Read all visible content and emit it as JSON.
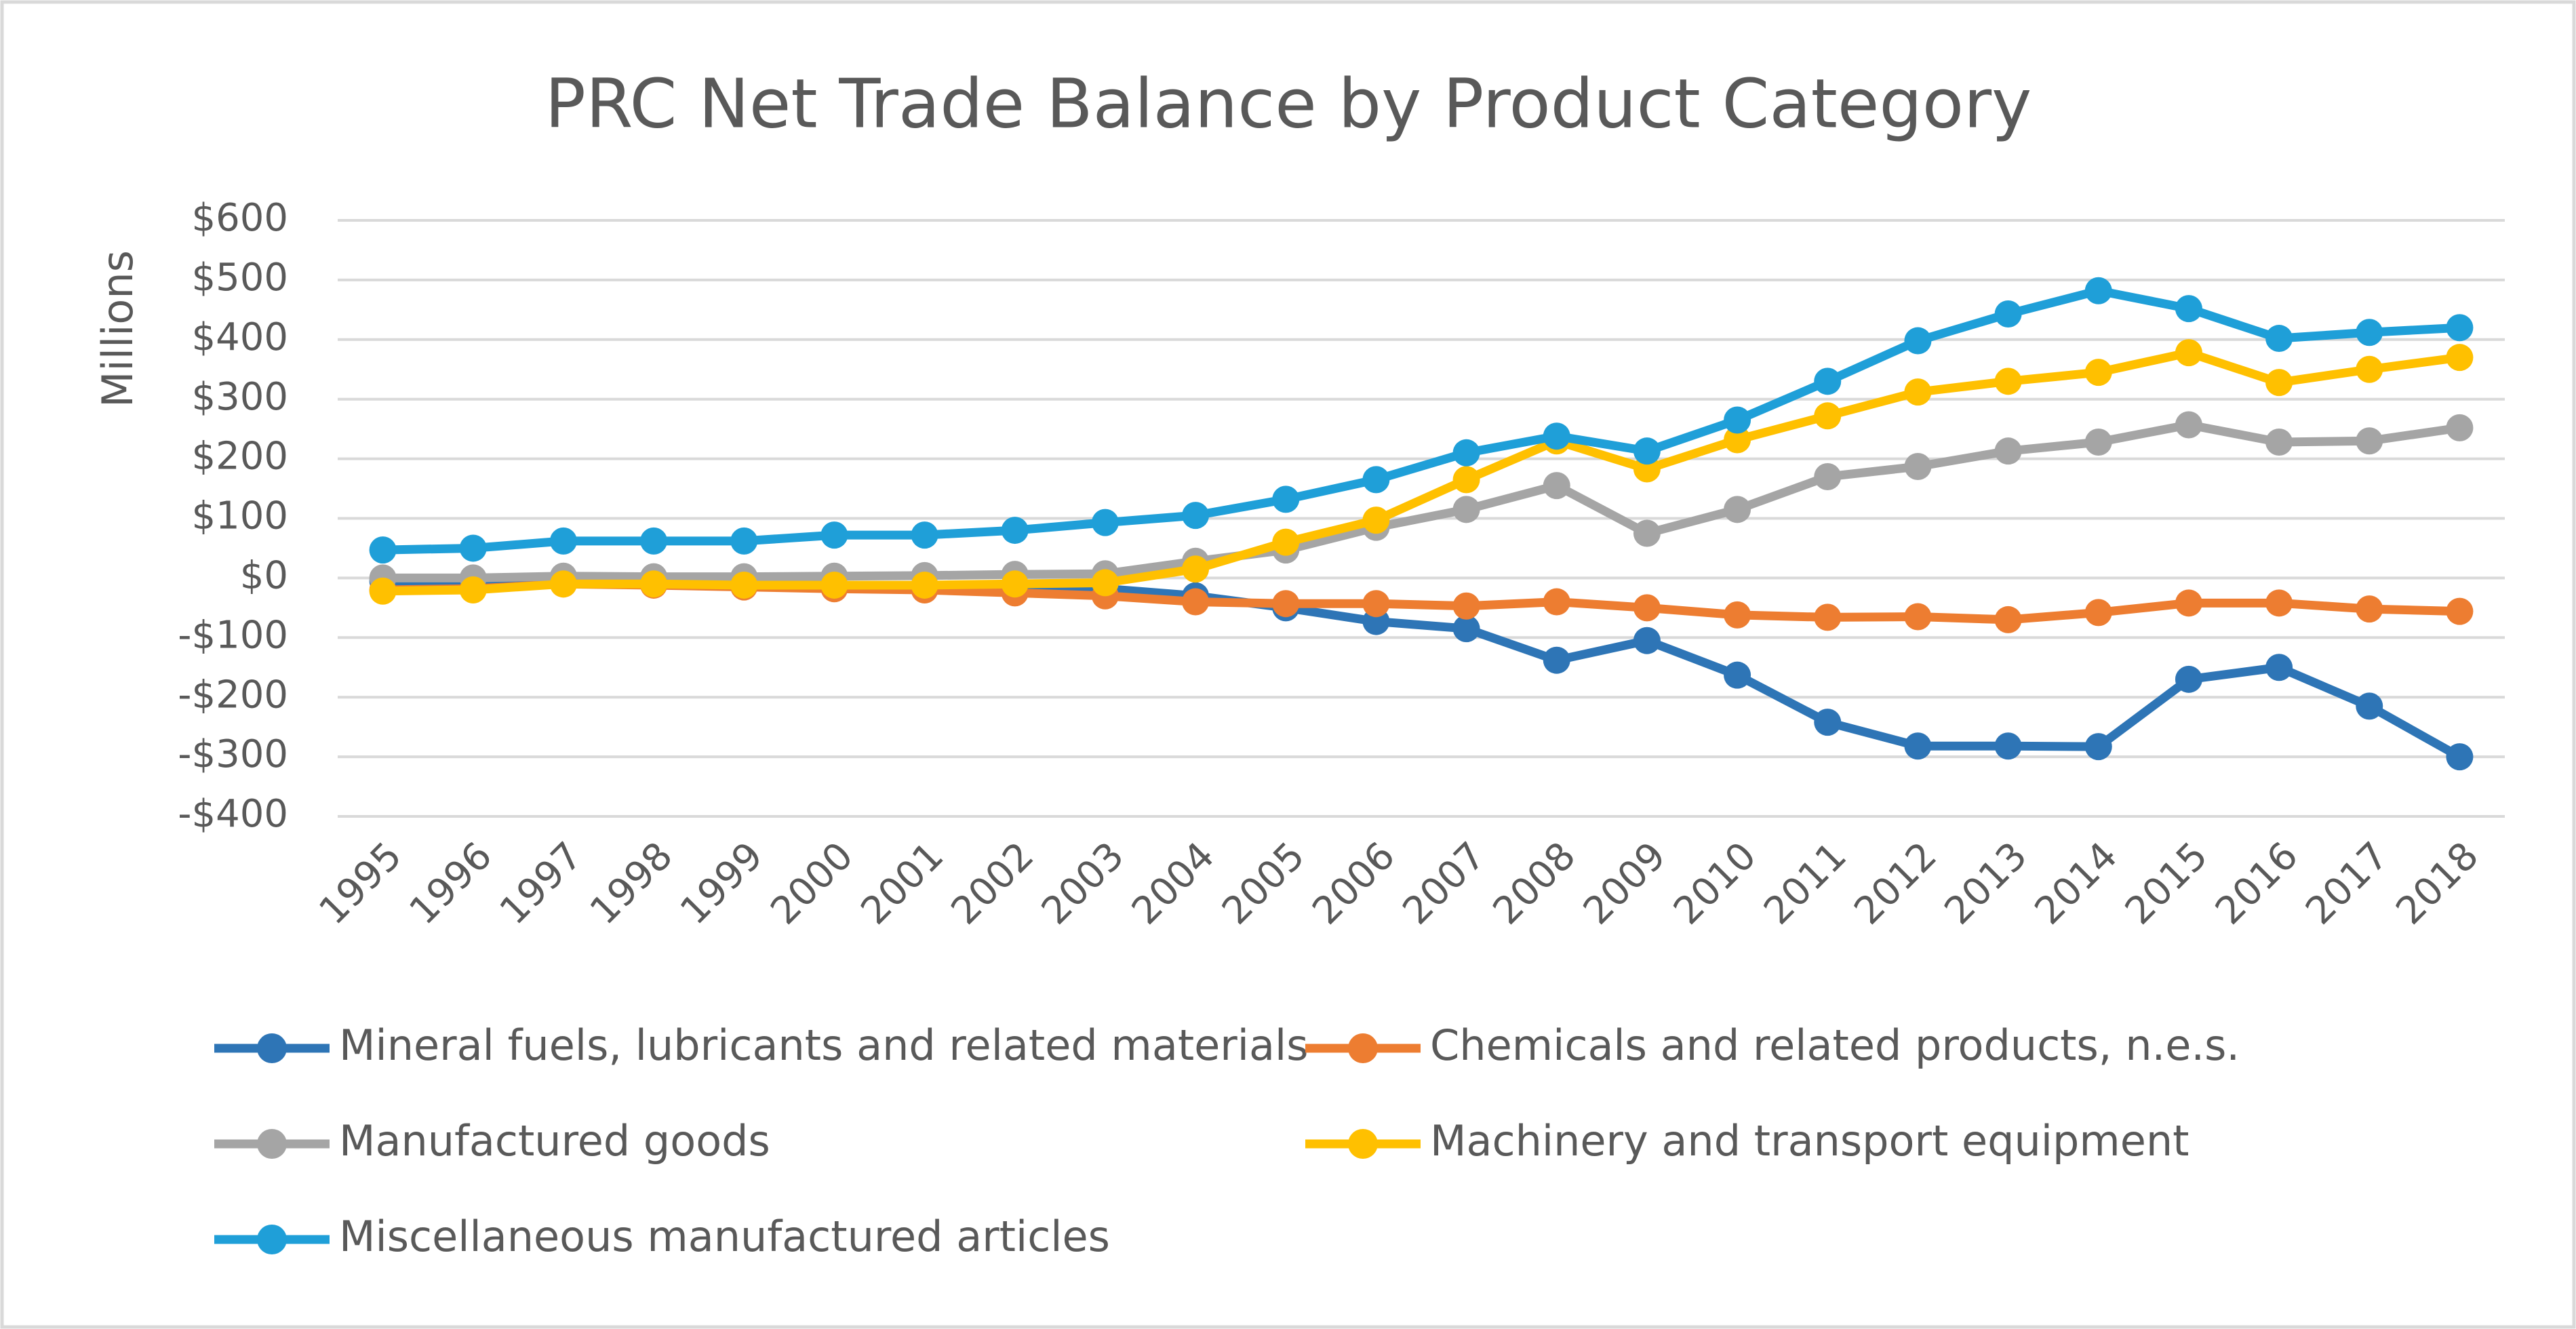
{
  "chart_data": {
    "type": "line",
    "title": "PRC Net Trade Balance by Product Category",
    "y_label": "Millions",
    "categories": [
      "1995",
      "1996",
      "1997",
      "1998",
      "1999",
      "2000",
      "2001",
      "2002",
      "2003",
      "2004",
      "2005",
      "2006",
      "2007",
      "2008",
      "2009",
      "2010",
      "2011",
      "2012",
      "2013",
      "2014",
      "2015",
      "2016",
      "2017",
      "2018"
    ],
    "series": [
      {
        "name": "Mineral fuels, lubricants and related materials",
        "color": "#2e75b6",
        "values": [
          -5,
          -8,
          -5,
          -8,
          -10,
          -12,
          -12,
          -15,
          -18,
          -30,
          -50,
          -73,
          -85,
          -138,
          -105,
          -163,
          -242,
          -282,
          -282,
          -283,
          -170,
          -150,
          -215,
          -300
        ]
      },
      {
        "name": "Chemicals and related products, n.e.s.",
        "color": "#ed7d31",
        "values": [
          -20,
          -18,
          -10,
          -12,
          -15,
          -18,
          -20,
          -25,
          -30,
          -40,
          -43,
          -43,
          -47,
          -40,
          -50,
          -62,
          -66,
          -65,
          -70,
          -58,
          -42,
          -42,
          -52,
          -56
        ]
      },
      {
        "name": "Manufactured goods",
        "color": "#a5a5a5",
        "values": [
          0,
          0,
          3,
          2,
          2,
          3,
          4,
          6,
          7,
          28,
          47,
          85,
          115,
          155,
          75,
          115,
          170,
          187,
          213,
          228,
          257,
          228,
          230,
          252
        ]
      },
      {
        "name": "Machinery and transport equipment",
        "color": "#ffc000",
        "values": [
          -22,
          -20,
          -10,
          -10,
          -12,
          -12,
          -12,
          -10,
          -8,
          15,
          60,
          97,
          165,
          230,
          183,
          232,
          272,
          312,
          330,
          345,
          378,
          328,
          350,
          370
        ]
      },
      {
        "name": "Miscellaneous manufactured articles",
        "color": "#1f9fd8",
        "values": [
          47,
          50,
          62,
          62,
          62,
          72,
          72,
          80,
          93,
          105,
          132,
          165,
          210,
          238,
          213,
          265,
          330,
          398,
          443,
          482,
          452,
          402,
          412,
          420
        ]
      }
    ],
    "ylim": [
      -400,
      600
    ],
    "yticks": [
      {
        "value": -400,
        "label": "-$400"
      },
      {
        "value": -300,
        "label": "-$300"
      },
      {
        "value": -200,
        "label": "-$200"
      },
      {
        "value": -100,
        "label": "-$100"
      },
      {
        "value": 0,
        "label": "$0"
      },
      {
        "value": 100,
        "label": "$100"
      },
      {
        "value": 200,
        "label": "$200"
      },
      {
        "value": 300,
        "label": "$300"
      },
      {
        "value": 400,
        "label": "$400"
      },
      {
        "value": 500,
        "label": "$500"
      },
      {
        "value": 600,
        "label": "$600"
      }
    ],
    "grid": true,
    "legend": "bottom"
  }
}
